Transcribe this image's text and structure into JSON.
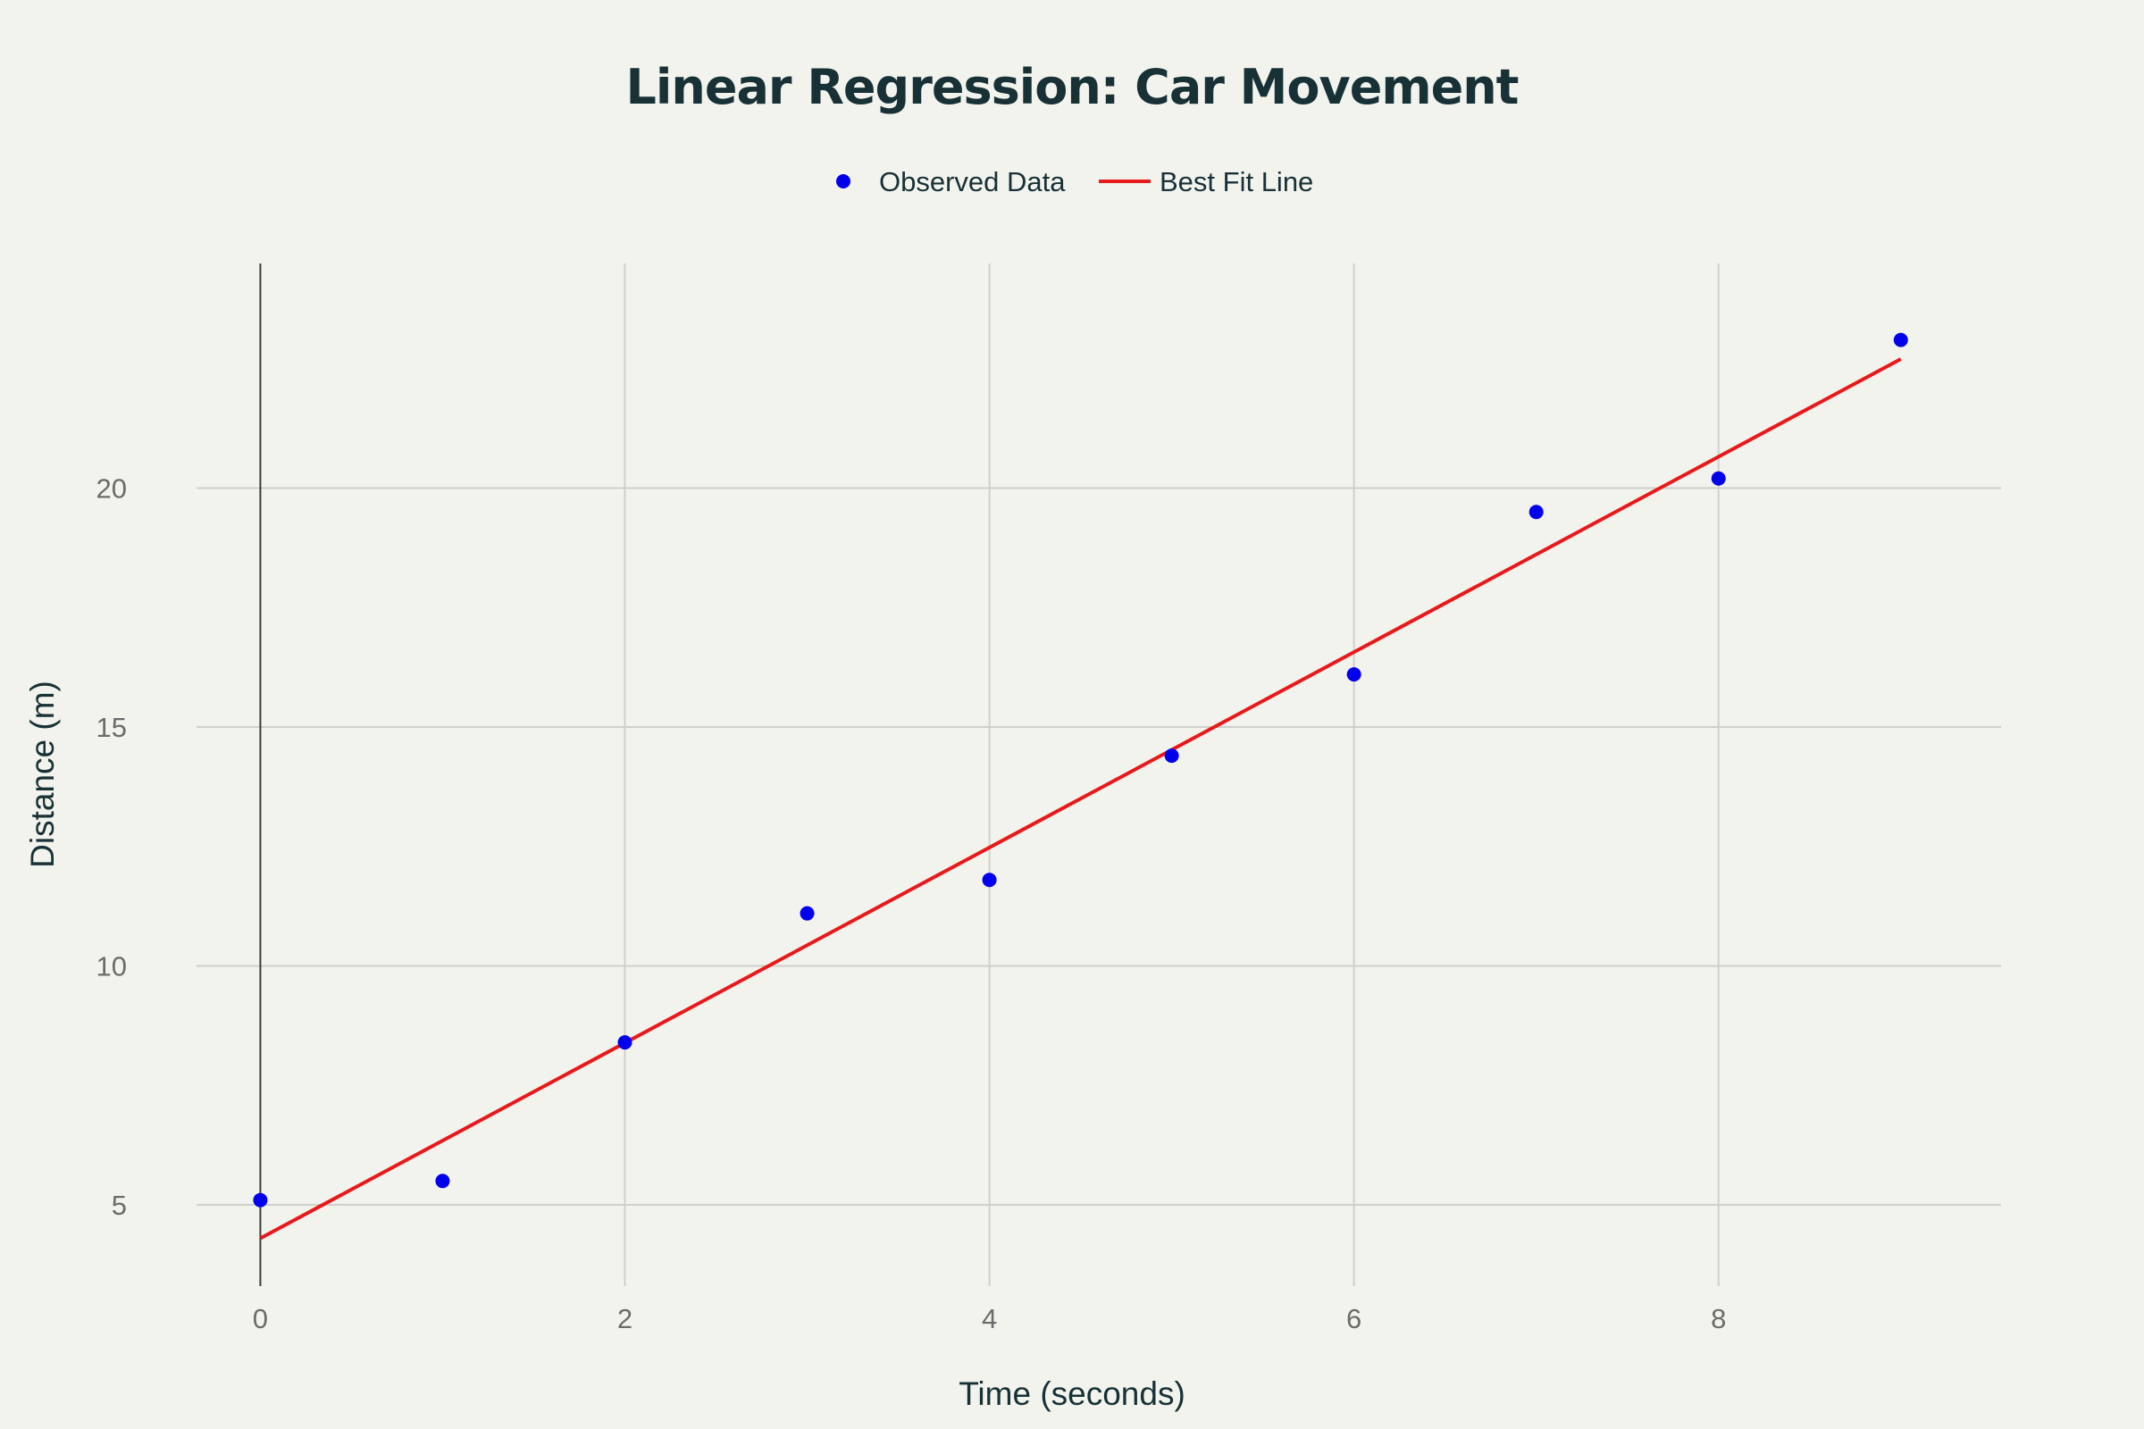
{
  "chart_data": {
    "type": "scatter",
    "title": "Linear Regression: Car Movement",
    "xlabel": "Time (seconds)",
    "ylabel": "Distance (m)",
    "xlim": [
      -0.35,
      9.55
    ],
    "ylim": [
      3.3,
      24.7
    ],
    "xticks": [
      0,
      2,
      4,
      6,
      8
    ],
    "yticks": [
      5,
      10,
      15,
      20
    ],
    "grid": true,
    "legend_position": "top-center",
    "series": [
      {
        "name": "Observed Data",
        "mode": "markers",
        "color": "#0000ee",
        "x": [
          0,
          1,
          2,
          3,
          4,
          5,
          6,
          7,
          8,
          9
        ],
        "y": [
          5.1,
          5.5,
          8.4,
          11.1,
          11.8,
          14.4,
          16.1,
          19.5,
          20.2,
          23.1
        ]
      },
      {
        "name": "Best Fit Line",
        "mode": "line",
        "color": "#e8191b",
        "x": [
          0,
          9
        ],
        "y": [
          4.3,
          22.7
        ]
      }
    ]
  }
}
